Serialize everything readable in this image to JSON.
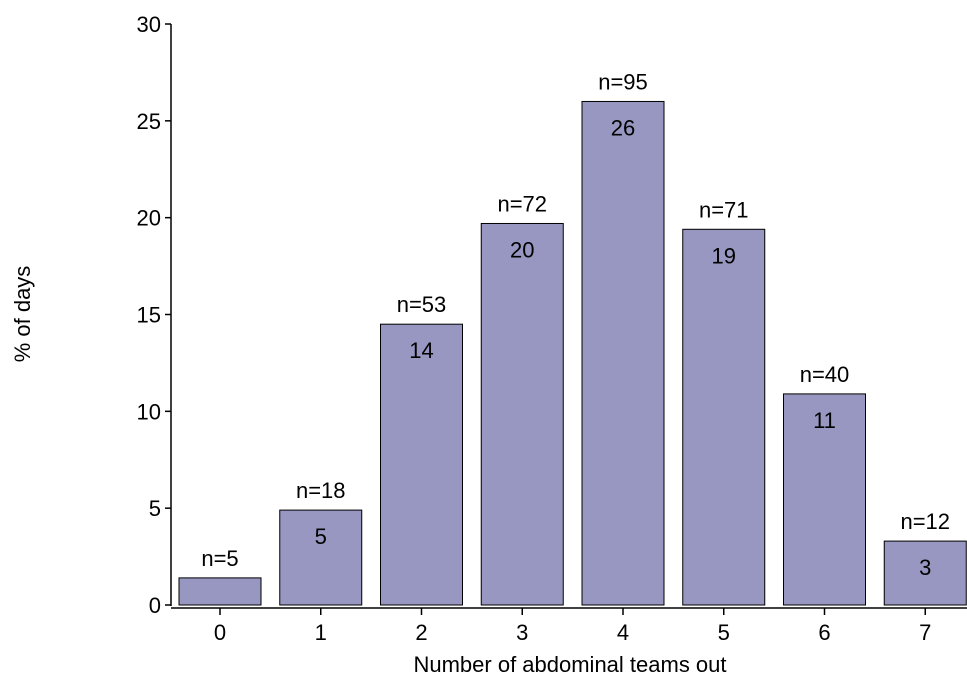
{
  "chart_data": {
    "type": "bar",
    "title": "",
    "xlabel": "Number of abdominal teams out",
    "ylabel": "% of days",
    "categories": [
      "0",
      "1",
      "2",
      "3",
      "4",
      "5",
      "6",
      "7"
    ],
    "values": [
      1.4,
      4.9,
      14.5,
      19.7,
      26,
      19.4,
      10.9,
      3.3
    ],
    "value_labels": [
      "",
      "5",
      "14",
      "20",
      "26",
      "19",
      "11",
      "3"
    ],
    "count_labels": [
      "n=5",
      "n=18",
      "n=53",
      "n=72",
      "n=95",
      "n=71",
      "n=40",
      "n=12"
    ],
    "ylim": [
      0,
      30
    ],
    "yticks": [
      0,
      5,
      10,
      15,
      20,
      25,
      30
    ],
    "grid": false,
    "legend": "none",
    "colors": {
      "bar_fill": "#9797c1",
      "bar_stroke": "#000000",
      "axis": "#000000",
      "text": "#000000"
    }
  }
}
